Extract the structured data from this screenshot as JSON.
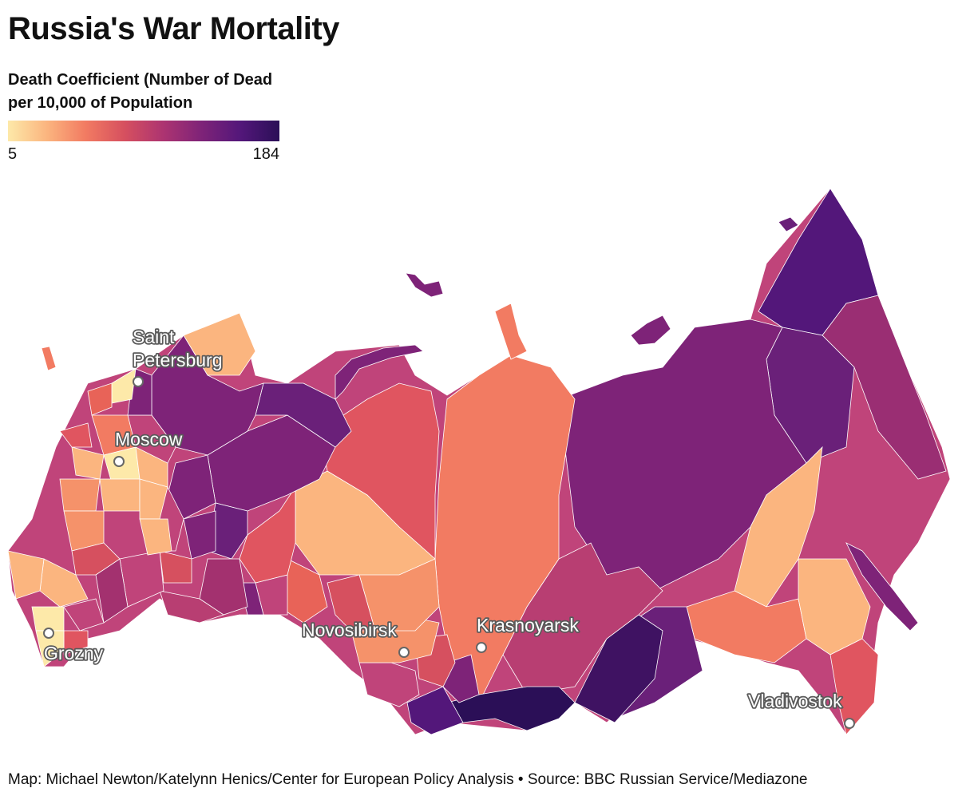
{
  "title": "Russia's War Mortality",
  "legend": {
    "title": "Death Coefficient (Number of Dead per 10,000 of Population",
    "min": "5",
    "max": "184",
    "stops": [
      "#fde9a9",
      "#fbb57f",
      "#f27b62",
      "#d6505f",
      "#ad3471",
      "#7e2378",
      "#53177a",
      "#2b0f57"
    ]
  },
  "cities": [
    {
      "id": "saint-petersburg",
      "lines": [
        "Saint",
        "Petersburg"
      ]
    },
    {
      "id": "moscow",
      "lines": [
        "Moscow"
      ]
    },
    {
      "id": "grozny",
      "lines": [
        "Grozny"
      ]
    },
    {
      "id": "novosibirsk",
      "lines": [
        "Novosibirsk"
      ]
    },
    {
      "id": "krasnoyarsk",
      "lines": [
        "Krasnoyarsk"
      ]
    },
    {
      "id": "vladivostok",
      "lines": [
        "Vladivostok"
      ]
    }
  ],
  "source": "Map: Michael Newton/Katelynn Henics/Center for European Policy Analysis • Source: BBC Russian Service/Mediazone"
}
